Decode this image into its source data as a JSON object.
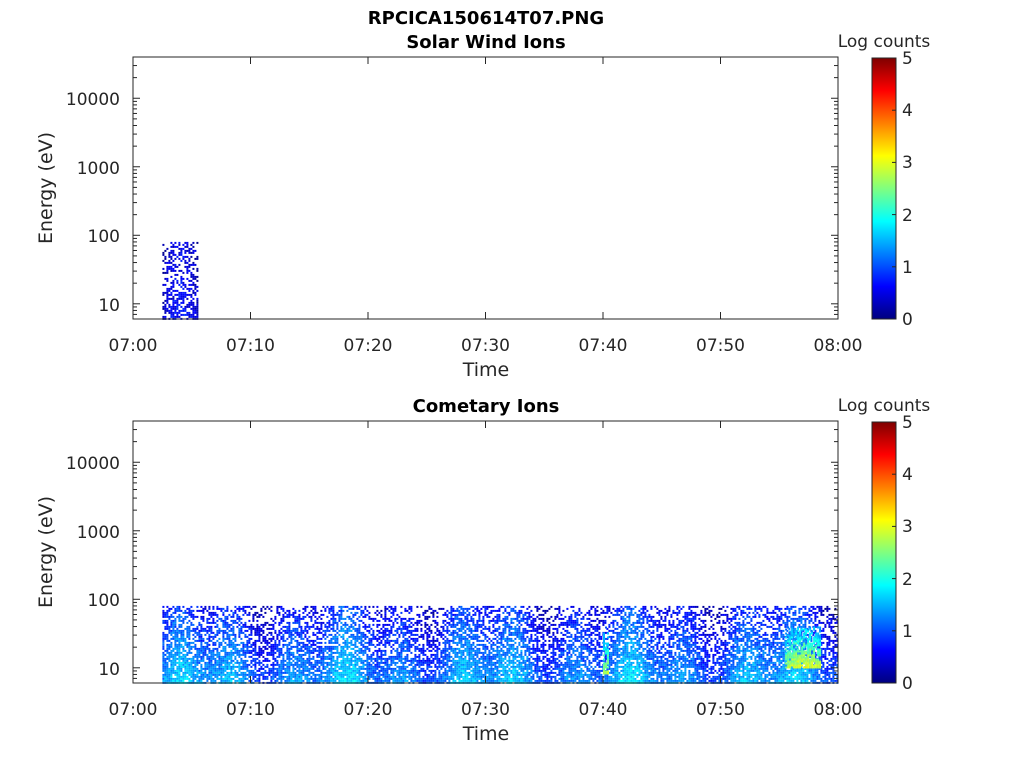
{
  "figure": {
    "title": "RPCICA150614T07.PNG"
  },
  "chart_data": [
    {
      "type": "heatmap",
      "title": "Solar Wind Ions",
      "xlabel": "Time",
      "ylabel": "Energy (eV)",
      "x_tick_labels": [
        "07:00",
        "07:10",
        "07:20",
        "07:30",
        "07:40",
        "07:50",
        "08:00"
      ],
      "x_range_minutes": [
        0,
        60
      ],
      "y_scale": "log",
      "ylim": [
        6,
        40000
      ],
      "y_tick_values": [
        10,
        100,
        1000,
        10000
      ],
      "y_tick_labels": [
        "10",
        "100",
        "1000",
        "10000"
      ],
      "colorbar": {
        "label": "Log counts",
        "range": [
          0,
          5
        ],
        "tick_labels": [
          "0",
          "1",
          "2",
          "3",
          "4",
          "5"
        ],
        "colormap": "jet"
      },
      "data_regions": [
        {
          "t_start_min": 2.5,
          "t_end_min": 5.5,
          "e_min_ev": 6,
          "e_max_ev": 80,
          "log_counts": 0.3,
          "density": 0.55
        }
      ]
    },
    {
      "type": "heatmap",
      "title": "Cometary Ions",
      "xlabel": "Time",
      "ylabel": "Energy (eV)",
      "x_tick_labels": [
        "07:00",
        "07:10",
        "07:20",
        "07:30",
        "07:40",
        "07:50",
        "08:00"
      ],
      "x_range_minutes": [
        0,
        60
      ],
      "y_scale": "log",
      "ylim": [
        6,
        40000
      ],
      "y_tick_values": [
        10,
        100,
        1000,
        10000
      ],
      "y_tick_labels": [
        "10",
        "100",
        "1000",
        "10000"
      ],
      "colorbar": {
        "label": "Log counts",
        "range": [
          0,
          5
        ],
        "tick_labels": [
          "0",
          "1",
          "2",
          "3",
          "4",
          "5"
        ],
        "colormap": "jet"
      },
      "data_regions": [
        {
          "t_start_min": 2.5,
          "t_end_min": 60,
          "e_min_ev": 6,
          "e_max_ev": 80,
          "log_counts": 1.3,
          "density": 0.85
        },
        {
          "t_start_min": 55.5,
          "t_end_min": 58.5,
          "e_min_ev": 10,
          "e_max_ev": 40,
          "log_counts": 2.6,
          "density": 0.9
        },
        {
          "t_start_min": 40,
          "t_end_min": 40.5,
          "e_min_ev": 8,
          "e_max_ev": 40,
          "log_counts": 2.5,
          "density": 0.9
        }
      ]
    }
  ]
}
